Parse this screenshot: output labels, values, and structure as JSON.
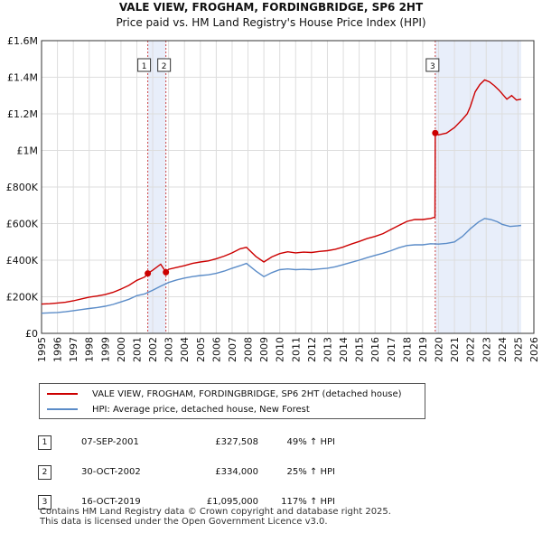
{
  "chart_data": {
    "type": "line",
    "title": "VALE VIEW, FROGHAM, FORDINGBRIDGE, SP6 2HT",
    "subtitle": "Price paid vs. HM Land Registry's House Price Index (HPI)",
    "xlabel": "",
    "ylabel": "",
    "xlim": [
      1995,
      2026
    ],
    "ylim": [
      0,
      1600000
    ],
    "y_ticks": [
      {
        "value": 0,
        "label": "£0"
      },
      {
        "value": 200000,
        "label": "£200K"
      },
      {
        "value": 400000,
        "label": "£400K"
      },
      {
        "value": 600000,
        "label": "£600K"
      },
      {
        "value": 800000,
        "label": "£800K"
      },
      {
        "value": 1000000,
        "label": "£1M"
      },
      {
        "value": 1200000,
        "label": "£1.2M"
      },
      {
        "value": 1400000,
        "label": "£1.4M"
      },
      {
        "value": 1600000,
        "label": "£1.6M"
      }
    ],
    "x_ticks": [
      "1995",
      "1996",
      "1997",
      "1998",
      "1999",
      "2000",
      "2001",
      "2002",
      "2003",
      "2004",
      "2005",
      "2006",
      "2007",
      "2008",
      "2009",
      "2010",
      "2011",
      "2012",
      "2013",
      "2014",
      "2015",
      "2016",
      "2017",
      "2018",
      "2019",
      "2020",
      "2021",
      "2022",
      "2023",
      "2024",
      "2025",
      "2026"
    ],
    "grid": true,
    "series": [
      {
        "name": "VALE VIEW, FROGHAM, FORDINGBRIDGE, SP6 2HT (detached house)",
        "color": "#cc0000",
        "x": [
          1995.0,
          1995.5,
          1996.0,
          1996.5,
          1997.0,
          1997.5,
          1998.0,
          1998.5,
          1999.0,
          1999.5,
          2000.0,
          2000.5,
          2001.0,
          2001.5,
          2001.69,
          2002.0,
          2002.5,
          2002.83,
          2003.0,
          2003.5,
          2004.0,
          2004.5,
          2005.0,
          2005.5,
          2006.0,
          2006.5,
          2007.0,
          2007.5,
          2007.9,
          2008.5,
          2009.0,
          2009.5,
          2010.0,
          2010.5,
          2011.0,
          2011.5,
          2012.0,
          2012.5,
          2013.0,
          2013.5,
          2014.0,
          2014.5,
          2015.0,
          2015.5,
          2016.0,
          2016.5,
          2017.0,
          2017.5,
          2018.0,
          2018.5,
          2019.0,
          2019.5,
          2019.77,
          2019.79,
          2020.0,
          2020.5,
          2021.0,
          2021.5,
          2021.8,
          2022.0,
          2022.3,
          2022.6,
          2022.9,
          2023.2,
          2023.5,
          2023.8,
          2024.0,
          2024.3,
          2024.6,
          2024.9,
          2025.2
        ],
        "y": [
          160000,
          162000,
          166000,
          170000,
          178000,
          188000,
          198000,
          204000,
          212000,
          224000,
          242000,
          262000,
          290000,
          308000,
          327508,
          345000,
          378000,
          334000,
          350000,
          360000,
          370000,
          382000,
          390000,
          396000,
          408000,
          422000,
          440000,
          462000,
          470000,
          420000,
          390000,
          418000,
          436000,
          446000,
          440000,
          444000,
          442000,
          448000,
          452000,
          460000,
          472000,
          488000,
          502000,
          518000,
          530000,
          545000,
          568000,
          590000,
          612000,
          622000,
          622000,
          628000,
          635000,
          1095000,
          1085000,
          1095000,
          1125000,
          1170000,
          1200000,
          1240000,
          1320000,
          1360000,
          1385000,
          1375000,
          1355000,
          1330000,
          1310000,
          1280000,
          1300000,
          1275000,
          1280000
        ]
      },
      {
        "name": "HPI: Average price, detached house, New Forest",
        "color": "#5b8cc8",
        "x": [
          1995.0,
          1995.5,
          1996.0,
          1996.5,
          1997.0,
          1997.5,
          1998.0,
          1998.5,
          1999.0,
          1999.5,
          2000.0,
          2000.5,
          2001.0,
          2001.5,
          2002.0,
          2002.5,
          2003.0,
          2003.5,
          2004.0,
          2004.5,
          2005.0,
          2005.5,
          2006.0,
          2006.5,
          2007.0,
          2007.5,
          2007.9,
          2008.5,
          2009.0,
          2009.5,
          2010.0,
          2010.5,
          2011.0,
          2011.5,
          2012.0,
          2012.5,
          2013.0,
          2013.5,
          2014.0,
          2014.5,
          2015.0,
          2015.5,
          2016.0,
          2016.5,
          2017.0,
          2017.5,
          2018.0,
          2018.5,
          2019.0,
          2019.5,
          2020.0,
          2020.5,
          2021.0,
          2021.5,
          2022.0,
          2022.5,
          2022.9,
          2023.3,
          2023.7,
          2024.0,
          2024.5,
          2025.0,
          2025.2
        ],
        "y": [
          110000,
          112000,
          114000,
          118000,
          124000,
          130000,
          136000,
          141000,
          148000,
          158000,
          172000,
          186000,
          206000,
          216000,
          236000,
          258000,
          278000,
          292000,
          302000,
          310000,
          316000,
          320000,
          328000,
          340000,
          356000,
          370000,
          382000,
          340000,
          310000,
          332000,
          348000,
          352000,
          348000,
          350000,
          348000,
          352000,
          356000,
          364000,
          376000,
          388000,
          400000,
          414000,
          426000,
          438000,
          452000,
          468000,
          480000,
          484000,
          484000,
          490000,
          488000,
          492000,
          500000,
          530000,
          572000,
          608000,
          628000,
          622000,
          610000,
          596000,
          584000,
          588000,
          590000
        ]
      }
    ],
    "annotations": [
      {
        "label": "1",
        "x": 2001.69,
        "price": 327508
      },
      {
        "label": "2",
        "x": 2002.83,
        "price": 334000
      },
      {
        "label": "3",
        "x": 2019.79,
        "price": 1095000
      }
    ],
    "shaded_ranges": [
      [
        2001.69,
        2002.83
      ],
      [
        2019.79,
        2025.2
      ]
    ],
    "colors": {
      "price": "#cc0000",
      "hpi": "#5b8cc8",
      "shade": "#e8eefa",
      "vline": "#cc4444"
    }
  },
  "legend": {
    "items": [
      {
        "label": "VALE VIEW, FROGHAM, FORDINGBRIDGE, SP6 2HT (detached house)",
        "color": "#cc0000"
      },
      {
        "label": "HPI: Average price, detached house, New Forest",
        "color": "#5b8cc8"
      }
    ]
  },
  "transactions": [
    {
      "num": "1",
      "date": "07-SEP-2001",
      "price": "£327,508",
      "hpi": "49% ↑ HPI"
    },
    {
      "num": "2",
      "date": "30-OCT-2002",
      "price": "£334,000",
      "hpi": "25% ↑ HPI"
    },
    {
      "num": "3",
      "date": "16-OCT-2019",
      "price": "£1,095,000",
      "hpi": "117% ↑ HPI"
    }
  ],
  "footer": {
    "line1": "Contains HM Land Registry data © Crown copyright and database right 2025.",
    "line2": "This data is licensed under the Open Government Licence v3.0."
  }
}
